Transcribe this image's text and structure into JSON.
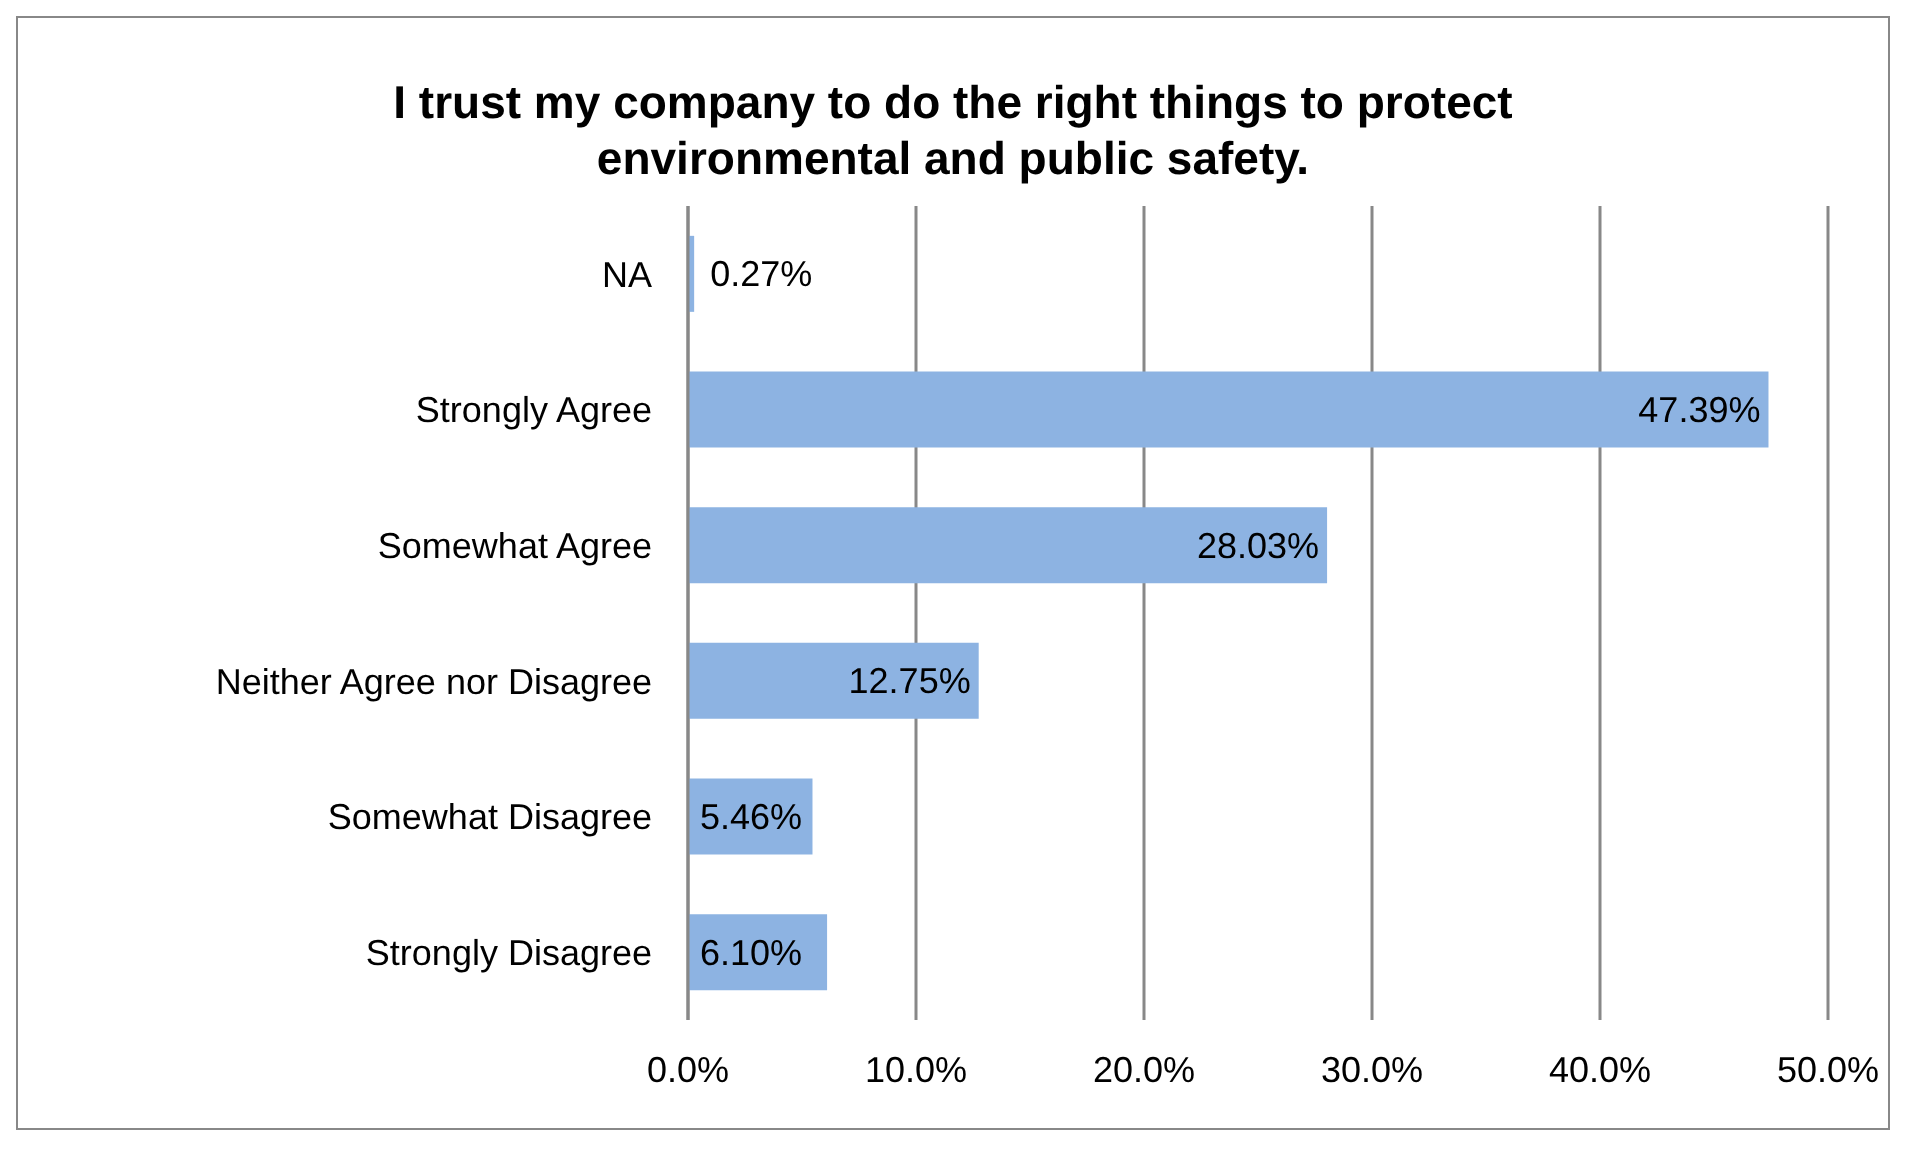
{
  "chart_data": {
    "type": "bar",
    "orientation": "horizontal",
    "title": "I trust my company to do the right things to protect environmental and public safety.",
    "categories": [
      "NA",
      "Strongly Agree",
      "Somewhat Agree",
      "Neither Agree nor Disagree",
      "Somewhat Disagree",
      "Strongly Disagree"
    ],
    "values": [
      0.27,
      47.39,
      28.03,
      12.75,
      5.46,
      6.1
    ],
    "value_labels": [
      "0.27%",
      "47.39%",
      "28.03%",
      "12.75%",
      "5.46%",
      "6.10%"
    ],
    "color": "#8db3e2",
    "xlim": [
      0,
      50
    ],
    "xticks": [
      {
        "value": 0,
        "label": "0.0%"
      },
      {
        "value": 10,
        "label": "10.0%"
      },
      {
        "value": 20,
        "label": "20.0%"
      },
      {
        "value": 30,
        "label": "30.0%"
      },
      {
        "value": 40,
        "label": "40.0%"
      },
      {
        "value": 50,
        "label": "50.0%"
      }
    ],
    "grid": "x"
  }
}
